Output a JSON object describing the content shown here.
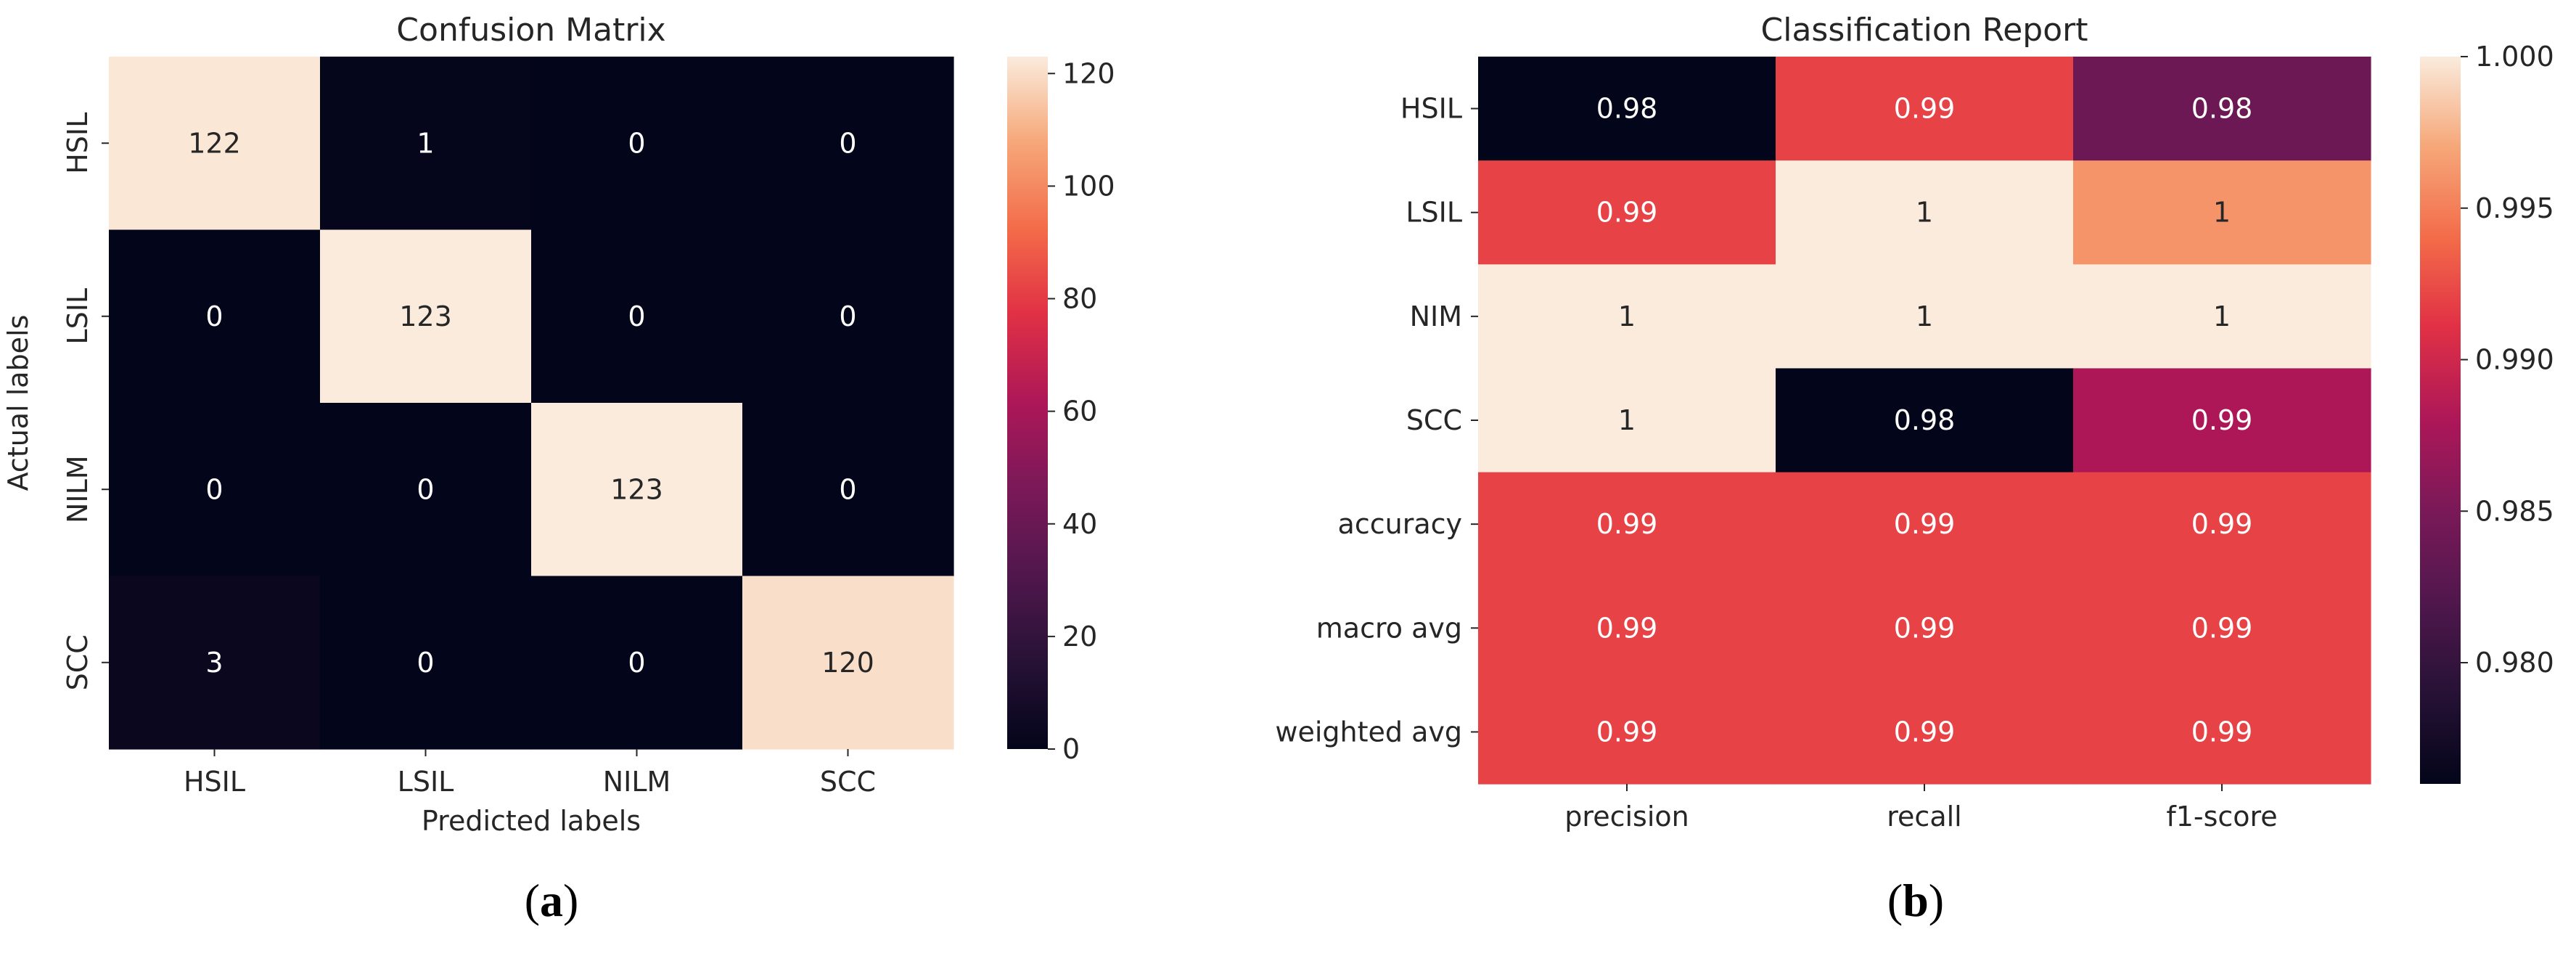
{
  "chart_data": [
    {
      "type": "heatmap",
      "panel_label_paren_open": "(",
      "panel_letter": "a",
      "panel_label_paren_close": ")",
      "title": "Confusion Matrix",
      "xlabel": "Predicted labels",
      "ylabel": "Actual labels",
      "row_labels": [
        "HSIL",
        "LSIL",
        "NILM",
        "SCC"
      ],
      "col_labels": [
        "HSIL",
        "LSIL",
        "NILM",
        "SCC"
      ],
      "values": [
        [
          122,
          1,
          0,
          0
        ],
        [
          0,
          123,
          0,
          0
        ],
        [
          0,
          0,
          123,
          0
        ],
        [
          3,
          0,
          0,
          120
        ]
      ],
      "cell_labels": [
        [
          "122",
          "1",
          "0",
          "0"
        ],
        [
          "0",
          "123",
          "0",
          "0"
        ],
        [
          "0",
          "0",
          "123",
          "0"
        ],
        [
          "3",
          "0",
          "0",
          "120"
        ]
      ],
      "vmin": 0,
      "vmax": 123,
      "colorbar_ticks": [
        0,
        20,
        40,
        60,
        80,
        100,
        120
      ],
      "colorbar_tick_labels": [
        "0",
        "20",
        "40",
        "60",
        "80",
        "100",
        "120"
      ],
      "colormap": "rocket"
    },
    {
      "type": "heatmap",
      "panel_label_paren_open": "(",
      "panel_letter": "b",
      "panel_label_paren_close": ")",
      "title": "Classification Report",
      "xlabel": "",
      "ylabel": "",
      "row_labels": [
        "HSIL",
        "LSIL",
        "NIM",
        "SCC",
        "accuracy",
        "macro avg",
        "weighted avg"
      ],
      "col_labels": [
        "precision",
        "recall",
        "f1-score"
      ],
      "values": [
        [
          0.976,
          0.992,
          0.984
        ],
        [
          0.992,
          1.0,
          0.996
        ],
        [
          1.0,
          1.0,
          1.0
        ],
        [
          1.0,
          0.976,
          0.988
        ],
        [
          0.992,
          0.992,
          0.992
        ],
        [
          0.992,
          0.992,
          0.992
        ],
        [
          0.992,
          0.992,
          0.992
        ]
      ],
      "cell_labels": [
        [
          "0.98",
          "0.99",
          "0.98"
        ],
        [
          "0.99",
          "1",
          "1"
        ],
        [
          "1",
          "1",
          "1"
        ],
        [
          "1",
          "0.98",
          "0.99"
        ],
        [
          "0.99",
          "0.99",
          "0.99"
        ],
        [
          "0.99",
          "0.99",
          "0.99"
        ],
        [
          "0.99",
          "0.99",
          "0.99"
        ]
      ],
      "vmin": 0.976,
      "vmax": 1.0,
      "colorbar_ticks": [
        0.98,
        0.985,
        0.99,
        0.995,
        1.0
      ],
      "colorbar_tick_labels": [
        "0.980",
        "0.985",
        "0.990",
        "0.995",
        "1.000"
      ],
      "colormap": "rocket"
    }
  ]
}
